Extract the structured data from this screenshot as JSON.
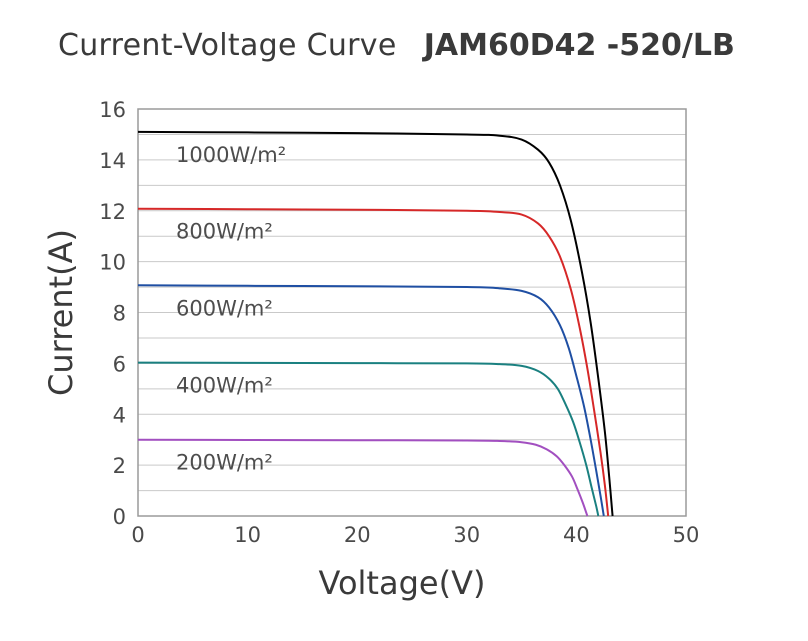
{
  "header": {
    "title": "Current-Voltage Curve",
    "model": "JAM60D42 -520/LB"
  },
  "chart_data": {
    "type": "line",
    "xlabel": "Voltage(V)",
    "ylabel": "Current(A)",
    "xlim": [
      0,
      50
    ],
    "ylim": [
      0,
      16
    ],
    "xticks": [
      0,
      10,
      20,
      30,
      40,
      50
    ],
    "yticks": [
      0,
      2,
      4,
      6,
      8,
      10,
      12,
      14,
      16
    ],
    "grid": "horizontal",
    "series": [
      {
        "name": "1000W/m²",
        "color": "#000000",
        "x": [
          0,
          10,
          20,
          30,
          33,
          35,
          36.5,
          37.5,
          38.5,
          39.5,
          40.5,
          41.3,
          42,
          42.6,
          43.0,
          43.3
        ],
        "y": [
          15.1,
          15.08,
          15.05,
          15.0,
          14.95,
          14.8,
          14.4,
          13.9,
          13.0,
          11.6,
          9.6,
          7.6,
          5.4,
          3.3,
          1.5,
          0
        ]
      },
      {
        "name": "800W/m²",
        "color": "#d62828",
        "x": [
          0,
          10,
          20,
          30,
          33,
          35,
          36.5,
          37.5,
          38.5,
          39.5,
          40.3,
          41.0,
          41.6,
          42.2,
          42.6,
          42.9
        ],
        "y": [
          12.08,
          12.06,
          12.04,
          12.0,
          11.95,
          11.85,
          11.5,
          11.0,
          10.2,
          8.9,
          7.4,
          5.8,
          4.2,
          2.5,
          1.2,
          0
        ]
      },
      {
        "name": "600W/m²",
        "color": "#1f4fa3",
        "x": [
          0,
          10,
          20,
          30,
          33,
          35,
          36.5,
          37.5,
          38.5,
          39.3,
          40.0,
          40.7,
          41.3,
          41.8,
          42.2,
          42.5
        ],
        "y": [
          9.07,
          9.05,
          9.03,
          9.0,
          8.95,
          8.85,
          8.6,
          8.2,
          7.5,
          6.6,
          5.5,
          4.3,
          3.0,
          1.8,
          0.8,
          0
        ]
      },
      {
        "name": "400W/m²",
        "color": "#1a8080",
        "x": [
          0,
          10,
          20,
          30,
          33,
          35,
          36.5,
          37.5,
          38.3,
          39.0,
          39.7,
          40.3,
          40.9,
          41.4,
          41.8,
          42.0
        ],
        "y": [
          6.03,
          6.02,
          6.01,
          6.0,
          5.97,
          5.9,
          5.7,
          5.4,
          5.0,
          4.4,
          3.7,
          2.9,
          2.0,
          1.1,
          0.4,
          0
        ]
      },
      {
        "name": "200W/m²",
        "color": "#a24fc0",
        "x": [
          0,
          10,
          20,
          30,
          33,
          35,
          36.3,
          37.3,
          38.2,
          38.9,
          39.6,
          40.1,
          40.6,
          41.0
        ],
        "y": [
          3.0,
          2.99,
          2.98,
          2.97,
          2.95,
          2.9,
          2.8,
          2.62,
          2.35,
          2.0,
          1.55,
          1.05,
          0.5,
          0
        ]
      }
    ]
  }
}
